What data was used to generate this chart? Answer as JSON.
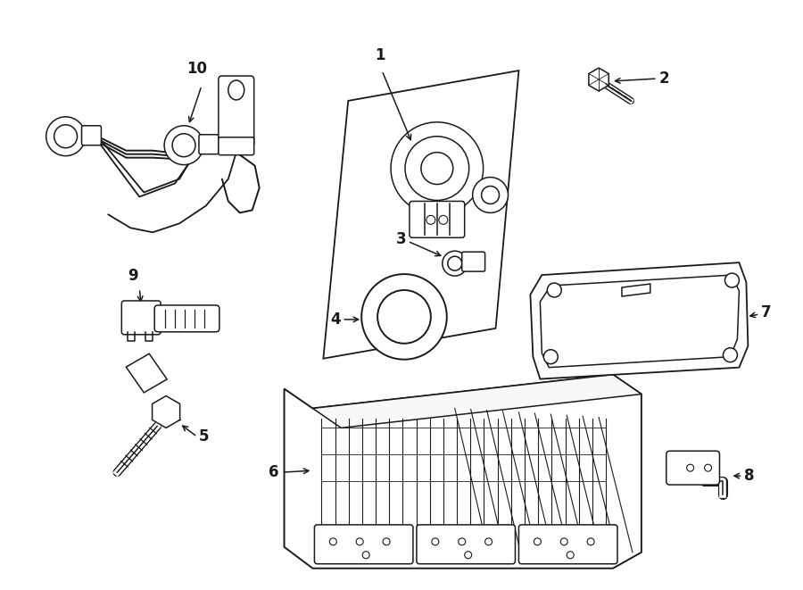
{
  "bg_color": "#ffffff",
  "line_color": "#1a1a1a",
  "label_color": "#1a1a1a",
  "fig_width": 9.0,
  "fig_height": 6.61,
  "dpi": 100,
  "lw": 1.1,
  "label_fs": 12
}
